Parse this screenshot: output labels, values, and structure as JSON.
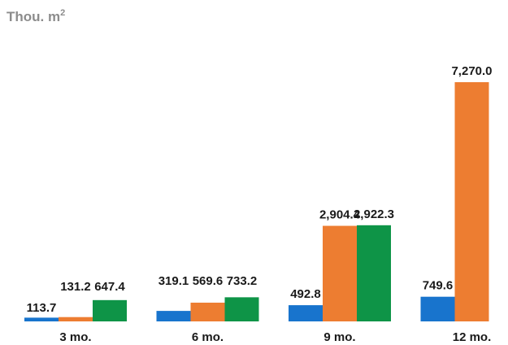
{
  "chart_data": {
    "type": "bar",
    "unit_label": "Thou. m",
    "unit_superscript": "2",
    "categories": [
      "3 mo.",
      "6 mo.",
      "9 mo.",
      "12 mo."
    ],
    "series": [
      {
        "color": "#1874cd",
        "values": [
          113.7,
          319.1,
          492.8,
          749.6
        ],
        "labels": [
          "113.7",
          "319.1",
          "492.8",
          "749.6"
        ]
      },
      {
        "color": "#ed7d31",
        "values": [
          131.2,
          569.6,
          2904.4,
          7270.0
        ],
        "labels": [
          "131.2",
          "569.6",
          "2,904.4",
          "7,270.0"
        ]
      },
      {
        "color": "#0e9447",
        "values": [
          647.4,
          733.2,
          2922.3,
          null
        ],
        "labels": [
          "647.4",
          "733.2",
          "2,922.3",
          null
        ]
      }
    ],
    "ylim": [
      0,
      7270
    ],
    "grid": false,
    "legend": "none"
  }
}
